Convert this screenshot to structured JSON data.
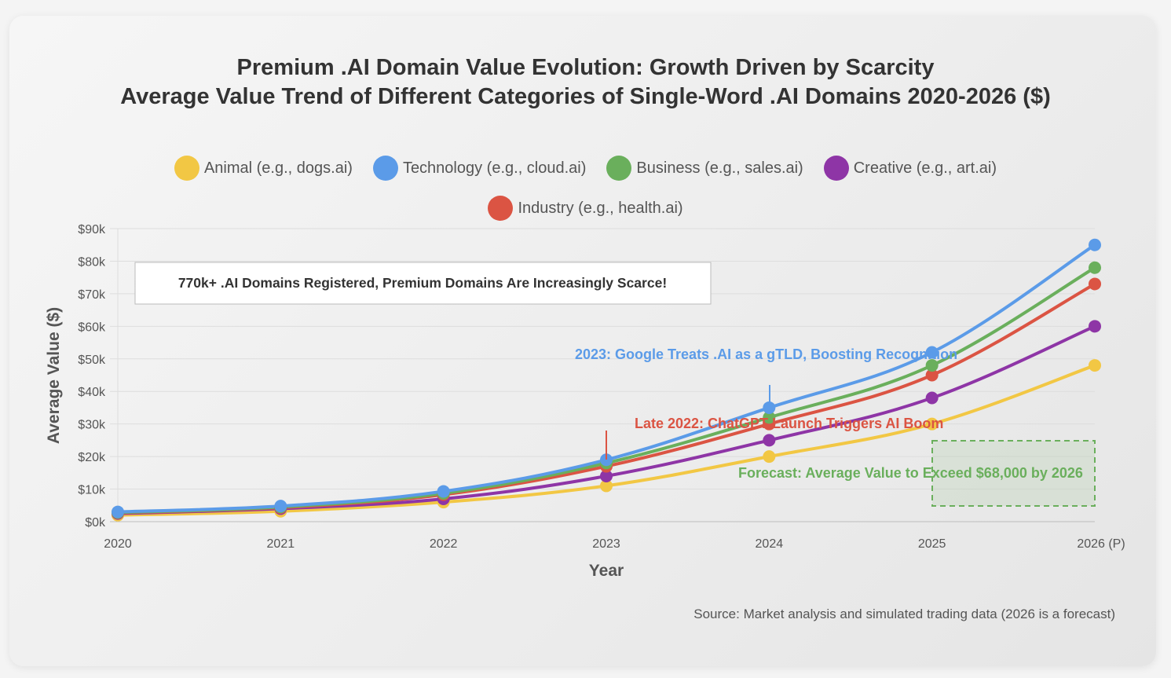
{
  "colors": {
    "animal": "#F2C744",
    "technology": "#5B9BE8",
    "business": "#6AAF5C",
    "creative": "#8E35A6",
    "industry": "#DB5443"
  },
  "chart_data": {
    "type": "line",
    "title": "Premium .AI Domain Value Evolution: Growth Driven by Scarcity",
    "subtitle": "Average Value Trend of Different Categories of Single-Word .AI Domains 2020-2026 ($)",
    "xlabel": "Year",
    "ylabel": "Average Value ($)",
    "categories": [
      "2020",
      "2021",
      "2022",
      "2023",
      "2024",
      "2025",
      "2026 (P)"
    ],
    "ylim": [
      0,
      90000
    ],
    "yticks": [
      "$0k",
      "$10k",
      "$20k",
      "$30k",
      "$40k",
      "$50k",
      "$60k",
      "$70k",
      "$80k",
      "$90k"
    ],
    "grid": true,
    "legend_position": "top-center",
    "series": [
      {
        "key": "animal",
        "name": "Animal (e.g., dogs.ai)",
        "color": "#F2C744",
        "values": [
          2000,
          3200,
          6000,
          11000,
          20000,
          30000,
          48000
        ]
      },
      {
        "key": "creative",
        "name": "Creative (e.g., art.ai)",
        "color": "#8E35A6",
        "values": [
          2500,
          4000,
          7000,
          14000,
          25000,
          38000,
          60000
        ]
      },
      {
        "key": "industry",
        "name": "Industry (e.g., health.ai)",
        "color": "#DB5443",
        "values": [
          2700,
          4300,
          8300,
          17000,
          30000,
          45000,
          73000
        ]
      },
      {
        "key": "business",
        "name": "Business (e.g., sales.ai)",
        "color": "#6AAF5C",
        "values": [
          2800,
          4500,
          8700,
          18000,
          32000,
          48000,
          78000
        ]
      },
      {
        "key": "technology",
        "name": "Technology (e.g., cloud.ai)",
        "color": "#5B9BE8",
        "values": [
          3000,
          4800,
          9300,
          19000,
          35000,
          52000,
          85000
        ]
      }
    ],
    "legend_order": [
      "animal",
      "technology",
      "business",
      "creative",
      "industry"
    ],
    "annotations": {
      "box": "770k+ .AI Domains Registered, Premium Domains Are Increasingly Scarce!",
      "google": "2023: Google Treats .AI as a gTLD, Boosting Recognition",
      "chatgpt": "Late 2022: ChatGPT Launch Triggers AI Boom",
      "forecast": "Forecast: Average Value to Exceed $68,000 by 2026"
    }
  },
  "source": "Source: Market analysis and simulated trading data (2026 is a forecast)"
}
